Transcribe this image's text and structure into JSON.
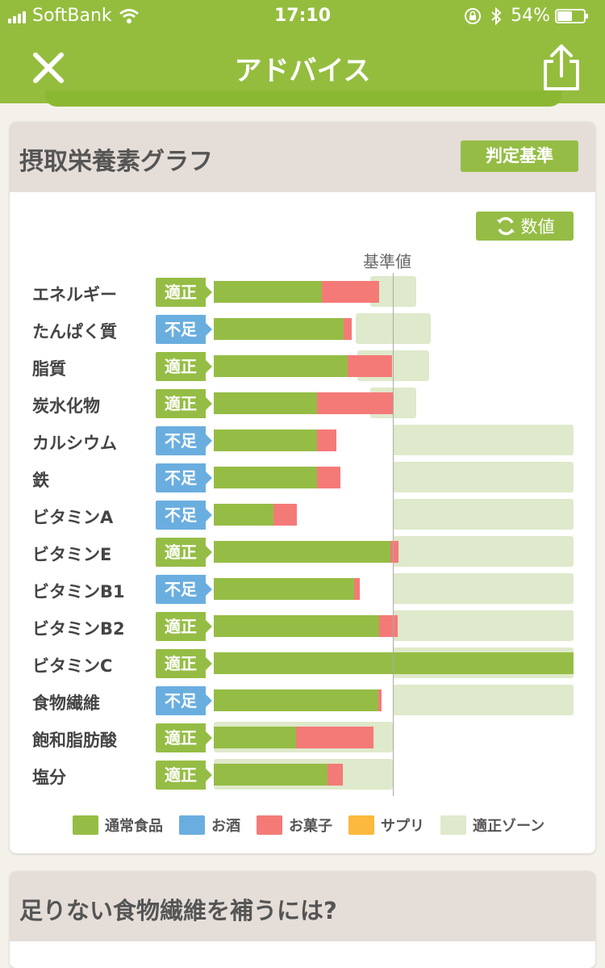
{
  "status_bar": {
    "carrier": "SoftBank",
    "time": "17:10",
    "battery": "54%"
  },
  "nav": {
    "title": "アドバイス"
  },
  "card": {
    "title": "摂取栄養素グラフ",
    "criteria_button": "判定基準",
    "value_button": "数値",
    "reference_label": "基準値"
  },
  "nutrients": [
    {
      "name": "エネルギー",
      "status": "適正",
      "status_type": "ok",
      "normal": 134,
      "snack": 71,
      "zone": [
        447,
        504
      ]
    },
    {
      "name": "たんぱく質",
      "status": "不足",
      "status_type": "short",
      "normal": 161,
      "snack": 10,
      "zone": [
        429,
        522
      ]
    },
    {
      "name": "脂質",
      "status": "適正",
      "status_type": "ok",
      "normal": 166,
      "snack": 55,
      "zone": [
        431,
        520
      ]
    },
    {
      "name": "炭水化物",
      "status": "適正",
      "status_type": "ok",
      "normal": 128,
      "snack": 95,
      "zone": [
        447,
        504
      ]
    },
    {
      "name": "カルシウム",
      "status": "不足",
      "status_type": "short",
      "normal": 128,
      "snack": 24,
      "zone": [
        475,
        699
      ]
    },
    {
      "name": "鉄",
      "status": "不足",
      "status_type": "short",
      "normal": 128,
      "snack": 29,
      "zone": [
        475,
        699
      ]
    },
    {
      "name": "ビタミンA",
      "status": "不足",
      "status_type": "short",
      "normal": 74,
      "snack": 29,
      "zone": [
        475,
        699
      ]
    },
    {
      "name": "ビタミンE",
      "status": "適正",
      "status_type": "ok",
      "normal": 219,
      "snack": 10,
      "zone": [
        475,
        699
      ]
    },
    {
      "name": "ビタミンB1",
      "status": "不足",
      "status_type": "short",
      "normal": 174,
      "snack": 7,
      "zone": [
        475,
        699
      ]
    },
    {
      "name": "ビタミンB2",
      "status": "適正",
      "status_type": "ok",
      "normal": 205,
      "snack": 23,
      "zone": [
        475,
        699
      ]
    },
    {
      "name": "ビタミンC",
      "status": "適正",
      "status_type": "ok",
      "normal": 446,
      "snack": 0,
      "zone": [
        475,
        699
      ]
    },
    {
      "name": "食物繊維",
      "status": "不足",
      "status_type": "short",
      "normal": 204,
      "snack": 4,
      "zone": [
        475,
        699
      ]
    },
    {
      "name": "飽和脂肪酸",
      "status": "適正",
      "status_type": "ok",
      "normal": 102,
      "snack": 96,
      "zone": [
        253,
        475
      ]
    },
    {
      "name": "塩分",
      "status": "適正",
      "status_type": "ok",
      "normal": 141,
      "snack": 19,
      "zone": [
        253,
        475
      ]
    }
  ],
  "legend": [
    {
      "label": "通常食品",
      "color": "#95bd45"
    },
    {
      "label": "お酒",
      "color": "#6aaee0"
    },
    {
      "label": "お菓子",
      "color": "#f47a78"
    },
    {
      "label": "サプリ",
      "color": "#fbb93d"
    },
    {
      "label": "適正ゾーン",
      "color": "#dfe9cb"
    }
  ],
  "card2": {
    "title": "足りない食物繊維を補うには?"
  }
}
